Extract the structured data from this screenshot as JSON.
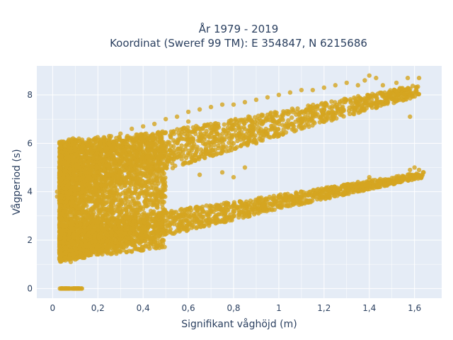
{
  "chart_data": {
    "type": "scatter",
    "title_line1": "År 1979 - 2019",
    "title_line2": "Koordinat (Sweref 99 TM): E 354847, N 6215686",
    "xlabel": "Signifikant våghöjd (m)",
    "ylabel": "Vågperiod (s)",
    "xlim": [
      -0.07,
      1.72
    ],
    "ylim": [
      -0.4,
      9.2
    ],
    "xticks": [
      0,
      0.2,
      0.4,
      0.6,
      0.8,
      1,
      1.2,
      1.4,
      1.6
    ],
    "xtick_labels": [
      "0",
      "0,2",
      "0,4",
      "0,6",
      "0,8",
      "1",
      "1,2",
      "1,4",
      "1,6"
    ],
    "yticks": [
      0,
      2,
      4,
      6,
      8
    ],
    "ytick_labels": [
      "0",
      "2",
      "4",
      "6",
      "8"
    ],
    "grid": true,
    "marker_color": "#d4a520",
    "series": [
      {
        "clusters": [
          {
            "name": "zero-period",
            "x_range": [
              0.02,
              0.13
            ],
            "y": 0
          },
          {
            "name": "upper-band",
            "x_range": [
              0.03,
              1.62
            ],
            "y_start": [
              3.5,
              5.8
            ],
            "y_end": [
              7.6,
              8.8
            ]
          },
          {
            "name": "lower-band",
            "x_range": [
              0.03,
              1.64
            ],
            "y_start": [
              1.1,
              2.6
            ],
            "y_end": [
              4.4,
              5.0
            ]
          },
          {
            "name": "core",
            "x_range": [
              0.03,
              0.5
            ],
            "y_range": [
              1.1,
              6.1
            ]
          }
        ],
        "points": [
          [
            0.03,
            1.6
          ],
          [
            0.05,
            1.2
          ],
          [
            0.08,
            1.1
          ],
          [
            0.1,
            1.2
          ],
          [
            0.12,
            1.3
          ],
          [
            0.04,
            3.1
          ],
          [
            0.02,
            3.8
          ],
          [
            0.02,
            4.0
          ],
          [
            0.06,
            5.4
          ],
          [
            0.07,
            6.1
          ],
          [
            0.09,
            6.2
          ],
          [
            0.1,
            5.8
          ],
          [
            0.15,
            6.0
          ],
          [
            0.2,
            6.1
          ],
          [
            0.25,
            6.3
          ],
          [
            0.3,
            6.4
          ],
          [
            0.35,
            6.6
          ],
          [
            0.4,
            6.7
          ],
          [
            0.45,
            6.8
          ],
          [
            0.5,
            7.0
          ],
          [
            0.55,
            7.1
          ],
          [
            0.6,
            7.3
          ],
          [
            0.65,
            7.4
          ],
          [
            0.7,
            7.5
          ],
          [
            0.75,
            7.6
          ],
          [
            0.8,
            7.6
          ],
          [
            0.85,
            7.7
          ],
          [
            0.9,
            7.8
          ],
          [
            0.95,
            7.9
          ],
          [
            1.0,
            8.0
          ],
          [
            1.05,
            8.1
          ],
          [
            1.1,
            8.2
          ],
          [
            1.15,
            8.2
          ],
          [
            1.2,
            8.3
          ],
          [
            1.25,
            8.4
          ],
          [
            1.3,
            8.5
          ],
          [
            1.35,
            8.4
          ],
          [
            1.38,
            8.6
          ],
          [
            1.4,
            8.8
          ],
          [
            1.43,
            8.7
          ],
          [
            1.46,
            8.4
          ],
          [
            1.52,
            8.5
          ],
          [
            1.57,
            8.7
          ],
          [
            1.62,
            8.7
          ],
          [
            1.58,
            7.1
          ],
          [
            1.41,
            7.8
          ],
          [
            1.35,
            7.6
          ],
          [
            0.3,
            2.2
          ],
          [
            0.4,
            2.5
          ],
          [
            0.5,
            2.8
          ],
          [
            0.6,
            3.0
          ],
          [
            0.7,
            3.2
          ],
          [
            0.8,
            3.4
          ],
          [
            0.9,
            3.6
          ],
          [
            1.0,
            3.8
          ],
          [
            1.1,
            4.0
          ],
          [
            1.2,
            4.1
          ],
          [
            1.3,
            4.3
          ],
          [
            1.4,
            4.5
          ],
          [
            1.45,
            4.4
          ],
          [
            1.5,
            4.4
          ],
          [
            1.55,
            4.6
          ],
          [
            1.58,
            4.9
          ],
          [
            1.6,
            5.0
          ],
          [
            1.62,
            4.9
          ],
          [
            1.64,
            4.8
          ],
          [
            1.63,
            4.6
          ],
          [
            1.4,
            4.6
          ],
          [
            1.35,
            4.4
          ],
          [
            0.6,
            6.9
          ],
          [
            0.7,
            6.4
          ],
          [
            0.8,
            6.0
          ],
          [
            0.9,
            6.0
          ],
          [
            0.65,
            4.7
          ],
          [
            0.8,
            4.6
          ],
          [
            0.75,
            4.8
          ],
          [
            0.85,
            5.0
          ]
        ]
      }
    ]
  }
}
